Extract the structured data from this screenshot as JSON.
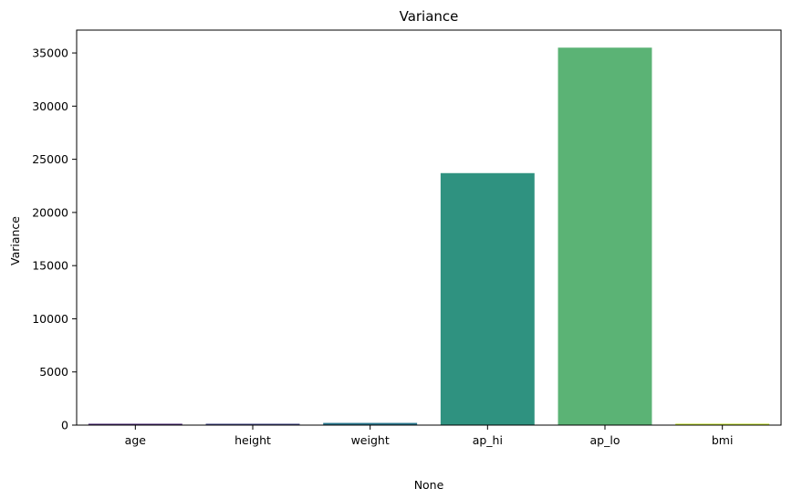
{
  "chart_data": {
    "type": "bar",
    "title": "Variance",
    "xlabel": "None",
    "ylabel": "Variance",
    "categories": [
      "age",
      "height",
      "weight",
      "ap_hi",
      "ap_lo",
      "bmi"
    ],
    "values": [
      45,
      68,
      207,
      23700,
      35500,
      37
    ],
    "colors": [
      "#482475",
      "#414487",
      "#2a788e",
      "#2f9280",
      "#5bb375",
      "#c0df25"
    ],
    "ylim": [
      0,
      37150
    ],
    "yticks": [
      0,
      5000,
      10000,
      15000,
      20000,
      25000,
      30000,
      35000
    ],
    "ytick_labels": [
      "0",
      "5000",
      "10000",
      "15000",
      "20000",
      "25000",
      "30000",
      "35000"
    ],
    "grid": false,
    "legend": "none"
  }
}
